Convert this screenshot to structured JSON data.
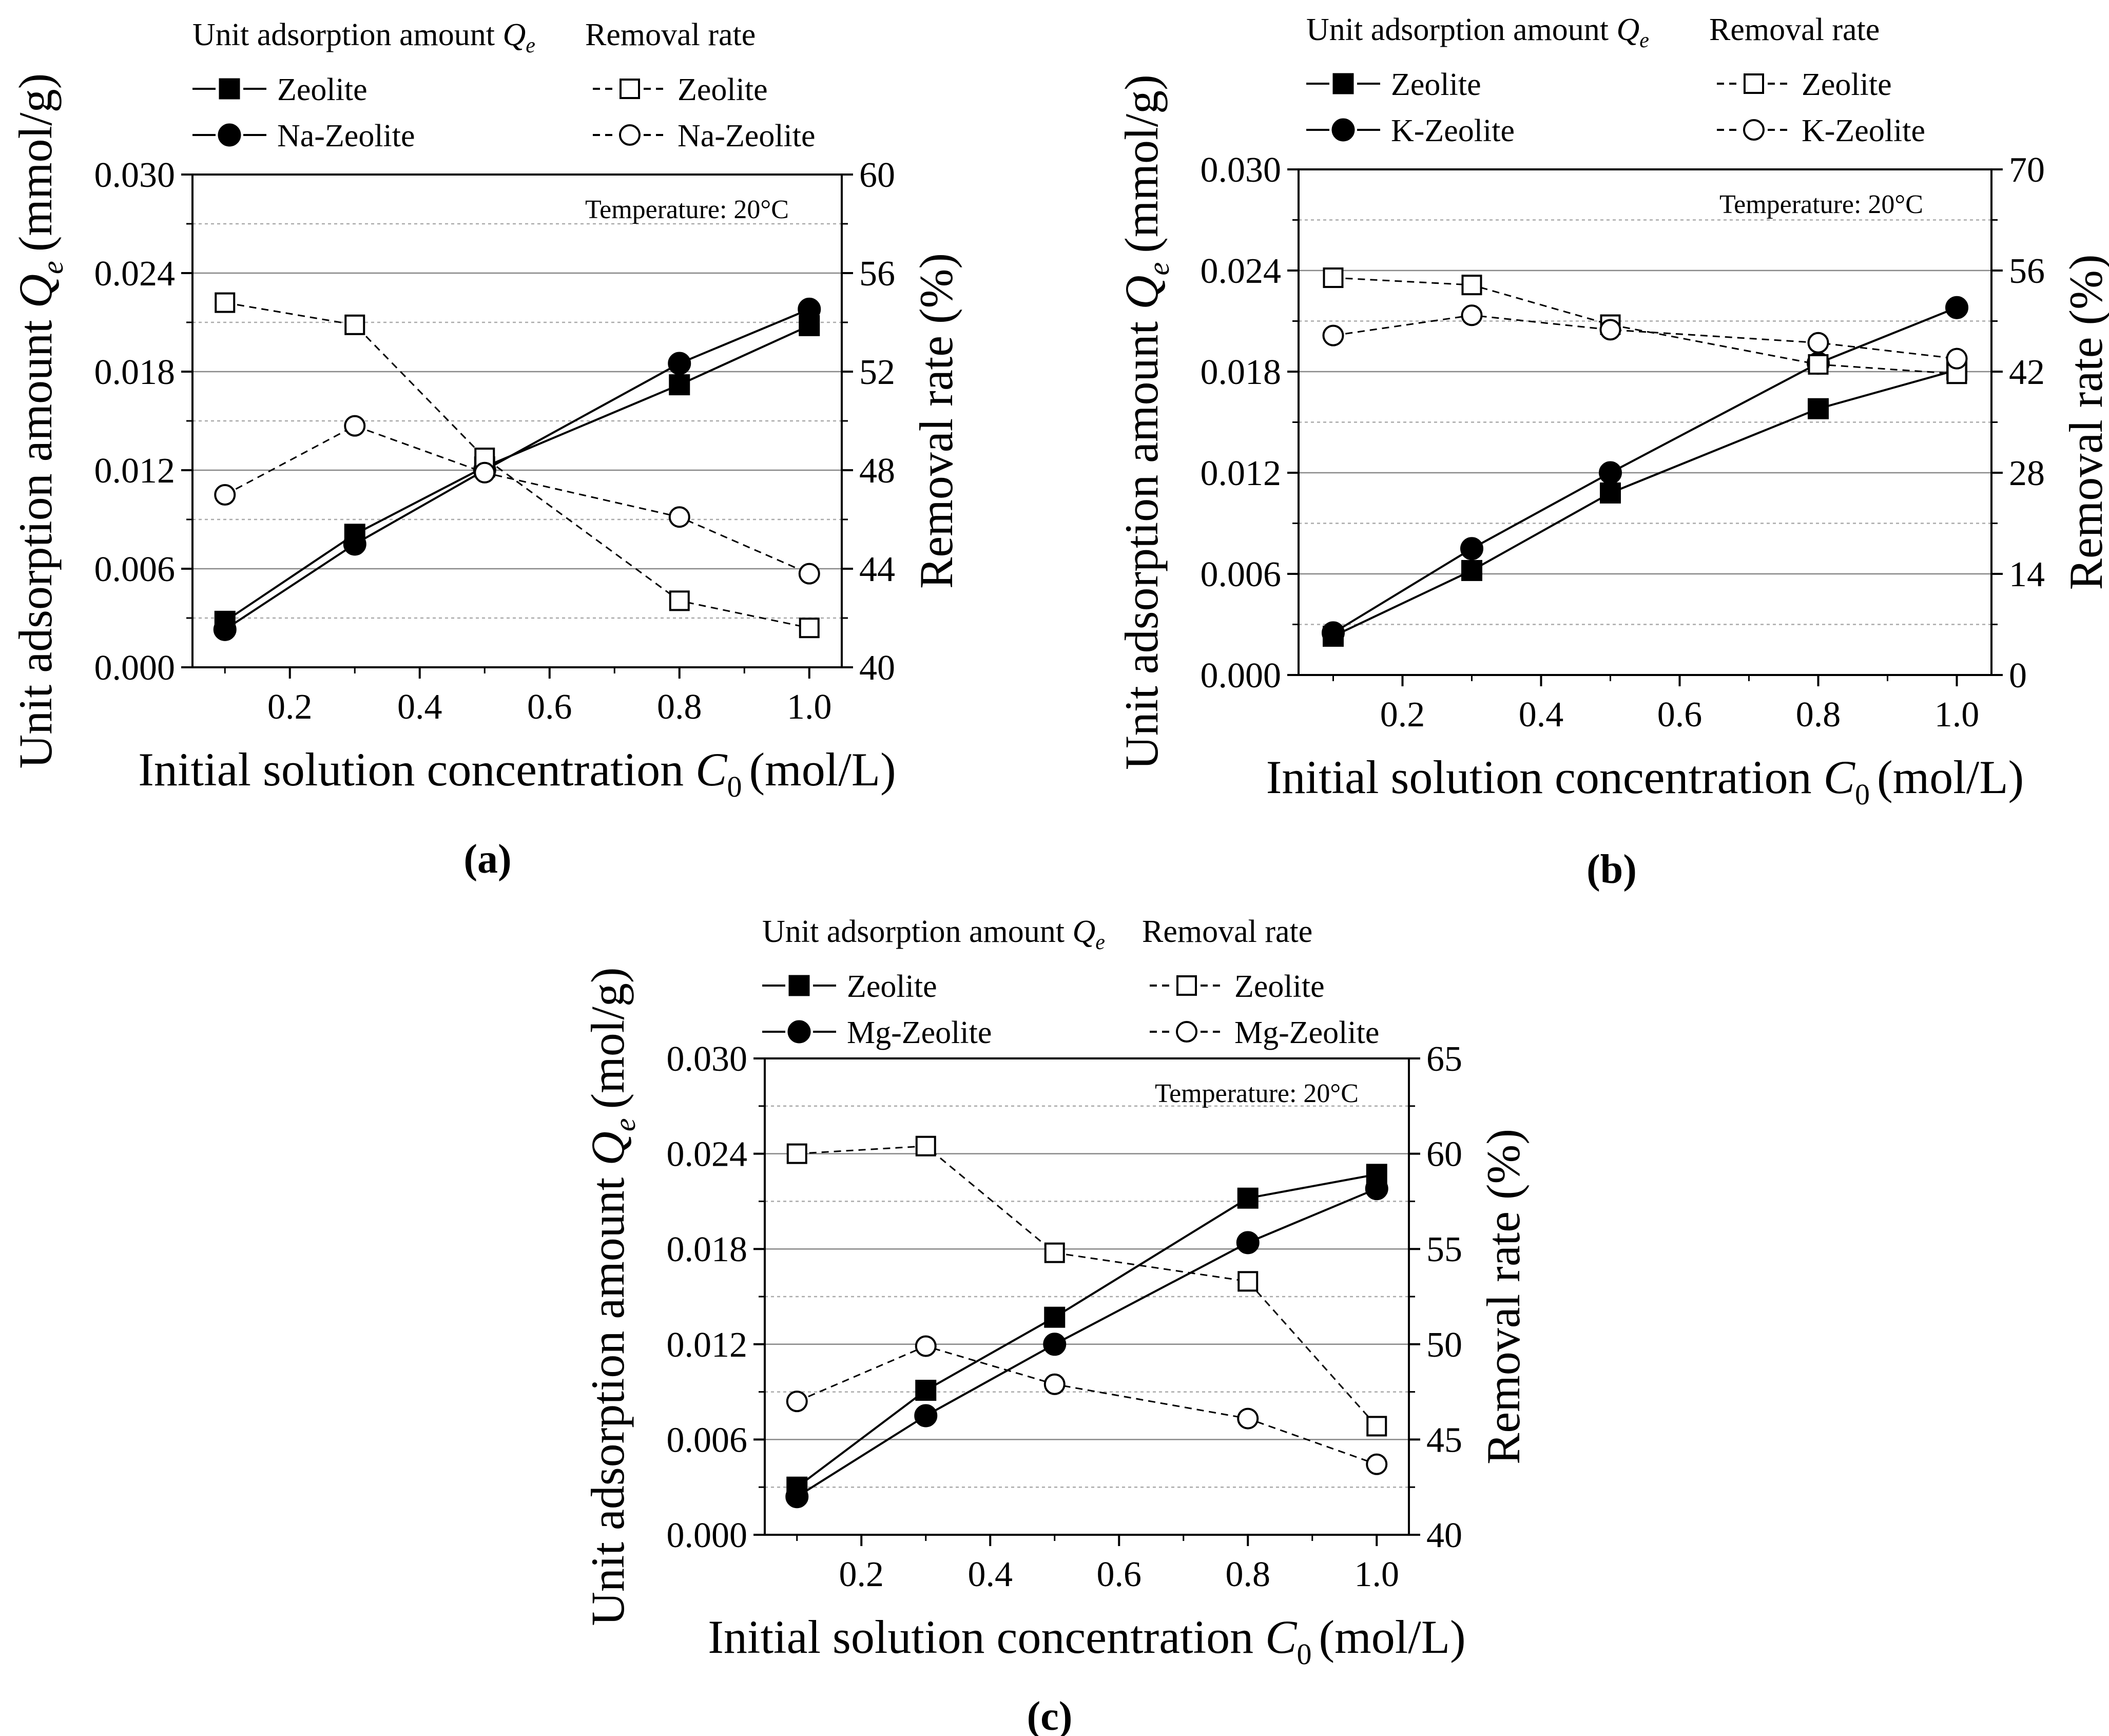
{
  "figure": {
    "panels": [
      {
        "label": "(a)",
        "legend_heading_left": "Unit adsorption amount",
        "legend_heading_left_symbol": "Q",
        "legend_heading_left_subscript": "e",
        "legend_heading_right": "Removal rate",
        "temperature_note": "Temperature: 20°C"
      },
      {
        "label": "(b)",
        "legend_heading_left": "Unit adsorption amount",
        "legend_heading_left_symbol": "Q",
        "legend_heading_left_subscript": "e",
        "legend_heading_right": "Removal rate",
        "temperature_note": "Temperature: 20°C"
      },
      {
        "label": "(c)",
        "legend_heading_left": "Unit adsorption amount",
        "legend_heading_left_symbol": "Q",
        "legend_heading_left_subscript": "e",
        "legend_heading_right": "Removal rate",
        "temperature_note": "Temperature: 20°C"
      }
    ]
  },
  "chart_data": [
    {
      "type": "line",
      "panel": "(a)",
      "xlabel": "Initial solution concentration C0 (mol/L)",
      "xlabel_main": "Initial solution concentration",
      "xlabel_symbol": "C",
      "xlabel_subscript": "0",
      "xlabel_unit": "(mol/L)",
      "ylabel_left": "Unit adsorption amount Qe (mmol/g)",
      "ylabel_left_main": "Unit adsorption amount",
      "ylabel_left_symbol": "Q",
      "ylabel_left_subscript": "e",
      "ylabel_left_unit": "(mmol/g)",
      "ylabel_right": "Removal rate (%)",
      "x": [
        0.1,
        0.3,
        0.5,
        0.8,
        1.0
      ],
      "xlim": [
        0.05,
        1.05
      ],
      "xticks": [
        0.2,
        0.4,
        0.6,
        0.8,
        1.0
      ],
      "xtick_labels": [
        "0.2",
        "0.4",
        "0.6",
        "0.8",
        "1.0"
      ],
      "ylim_left": [
        0,
        0.03
      ],
      "yticks_left": [
        0,
        0.006,
        0.012,
        0.018,
        0.024,
        0.03
      ],
      "ytick_labels_left": [
        "0.000",
        "0.006",
        "0.012",
        "0.018",
        "0.024",
        "0.030"
      ],
      "ylim_right": [
        40,
        60
      ],
      "yticks_right": [
        40,
        44,
        48,
        52,
        56,
        60
      ],
      "ytick_labels_right": [
        "40",
        "44",
        "48",
        "52",
        "56",
        "60"
      ],
      "series": [
        {
          "name": "Zeolite",
          "group": "Unit adsorption amount",
          "axis": "left",
          "style": "solid",
          "marker": "filled-square",
          "values": [
            0.0028,
            0.0081,
            0.0122,
            0.0172,
            0.0208
          ]
        },
        {
          "name": "Na-Zeolite",
          "group": "Unit adsorption amount",
          "axis": "left",
          "style": "solid",
          "marker": "filled-circle",
          "values": [
            0.0023,
            0.0075,
            0.012,
            0.0185,
            0.0218
          ]
        },
        {
          "name": "Zeolite",
          "group": "Removal rate",
          "axis": "right",
          "style": "dashed",
          "marker": "open-square",
          "values": [
            54.8,
            53.9,
            48.5,
            42.7,
            41.6
          ]
        },
        {
          "name": "Na-Zeolite",
          "group": "Removal rate",
          "axis": "right",
          "style": "dashed",
          "marker": "open-circle",
          "values": [
            47.0,
            49.8,
            47.9,
            46.1,
            43.8
          ]
        }
      ]
    },
    {
      "type": "line",
      "panel": "(b)",
      "xlabel": "Initial solution concentration C0 (mol/L)",
      "xlabel_main": "Initial solution concentration",
      "xlabel_symbol": "C",
      "xlabel_subscript": "0",
      "xlabel_unit": "(mol/L)",
      "ylabel_left": "Unit adsorption amount Qe (mmol/g)",
      "ylabel_left_main": "Unit adsorption amount",
      "ylabel_left_symbol": "Q",
      "ylabel_left_subscript": "e",
      "ylabel_left_unit": "(mmol/g)",
      "ylabel_right": "Removal rate (%)",
      "x": [
        0.1,
        0.3,
        0.5,
        0.8,
        1.0
      ],
      "xlim": [
        0.05,
        1.05
      ],
      "xticks": [
        0.2,
        0.4,
        0.6,
        0.8,
        1.0
      ],
      "xtick_labels": [
        "0.2",
        "0.4",
        "0.6",
        "0.8",
        "1.0"
      ],
      "ylim_left": [
        0,
        0.03
      ],
      "yticks_left": [
        0,
        0.006,
        0.012,
        0.018,
        0.024,
        0.03
      ],
      "ytick_labels_left": [
        "0.000",
        "0.006",
        "0.012",
        "0.018",
        "0.024",
        "0.030"
      ],
      "ylim_right": [
        0,
        70
      ],
      "yticks_right": [
        0,
        14,
        28,
        42,
        56,
        70
      ],
      "ytick_labels_right": [
        "0",
        "14",
        "28",
        "42",
        "56",
        "70"
      ],
      "series": [
        {
          "name": "Zeolite",
          "group": "Unit adsorption amount",
          "axis": "left",
          "style": "solid",
          "marker": "filled-square",
          "values": [
            0.0023,
            0.0062,
            0.0108,
            0.0158,
            0.0181
          ]
        },
        {
          "name": "K-Zeolite",
          "group": "Unit adsorption amount",
          "axis": "left",
          "style": "solid",
          "marker": "filled-circle",
          "values": [
            0.0025,
            0.0075,
            0.012,
            0.0185,
            0.0218
          ]
        },
        {
          "name": "Zeolite",
          "group": "Removal rate",
          "axis": "right",
          "style": "dashed",
          "marker": "open-square",
          "values": [
            55.0,
            54.0,
            48.5,
            43.0,
            41.7
          ]
        },
        {
          "name": "K-Zeolite",
          "group": "Removal rate",
          "axis": "right",
          "style": "dashed",
          "marker": "open-circle",
          "values": [
            47.0,
            49.8,
            47.8,
            46.0,
            43.8
          ]
        }
      ]
    },
    {
      "type": "line",
      "panel": "(c)",
      "xlabel": "Initial solution concentration C0 (mol/L)",
      "xlabel_main": "Initial solution concentration",
      "xlabel_symbol": "C",
      "xlabel_subscript": "0",
      "xlabel_unit": "(mol/L)",
      "ylabel_left": "Unit adsorption amount Qe (mol/g)",
      "ylabel_left_main": "Unit adsorption amount",
      "ylabel_left_symbol": "Q",
      "ylabel_left_subscript": "e",
      "ylabel_left_unit": "(mol/g)",
      "ylabel_right": "Removal rate (%)",
      "x": [
        0.1,
        0.3,
        0.5,
        0.8,
        1.0
      ],
      "xlim": [
        0.05,
        1.05
      ],
      "xticks": [
        0.2,
        0.4,
        0.6,
        0.8,
        1.0
      ],
      "xtick_labels": [
        "0.2",
        "0.4",
        "0.6",
        "0.8",
        "1.0"
      ],
      "ylim_left": [
        0,
        0.03
      ],
      "yticks_left": [
        0,
        0.006,
        0.012,
        0.018,
        0.024,
        0.03
      ],
      "ytick_labels_left": [
        "0.000",
        "0.006",
        "0.012",
        "0.018",
        "0.024",
        "0.030"
      ],
      "ylim_right": [
        40,
        65
      ],
      "yticks_right": [
        40,
        45,
        50,
        55,
        60,
        65
      ],
      "ytick_labels_right": [
        "40",
        "45",
        "50",
        "55",
        "60",
        "65"
      ],
      "series": [
        {
          "name": "Zeolite",
          "group": "Unit adsorption amount",
          "axis": "left",
          "style": "solid",
          "marker": "filled-square",
          "values": [
            0.003,
            0.0091,
            0.0137,
            0.0212,
            0.0227
          ]
        },
        {
          "name": "Mg-Zeolite",
          "group": "Unit adsorption amount",
          "axis": "left",
          "style": "solid",
          "marker": "filled-circle",
          "values": [
            0.0024,
            0.0075,
            0.012,
            0.0184,
            0.0218
          ]
        },
        {
          "name": "Zeolite",
          "group": "Removal rate",
          "axis": "right",
          "style": "dashed",
          "marker": "open-square",
          "values": [
            60.0,
            60.4,
            54.8,
            53.3,
            45.7
          ]
        },
        {
          "name": "Mg-Zeolite",
          "group": "Removal rate",
          "axis": "right",
          "style": "dashed",
          "marker": "open-circle",
          "values": [
            47.0,
            49.9,
            47.9,
            46.1,
            43.7
          ]
        }
      ]
    }
  ]
}
